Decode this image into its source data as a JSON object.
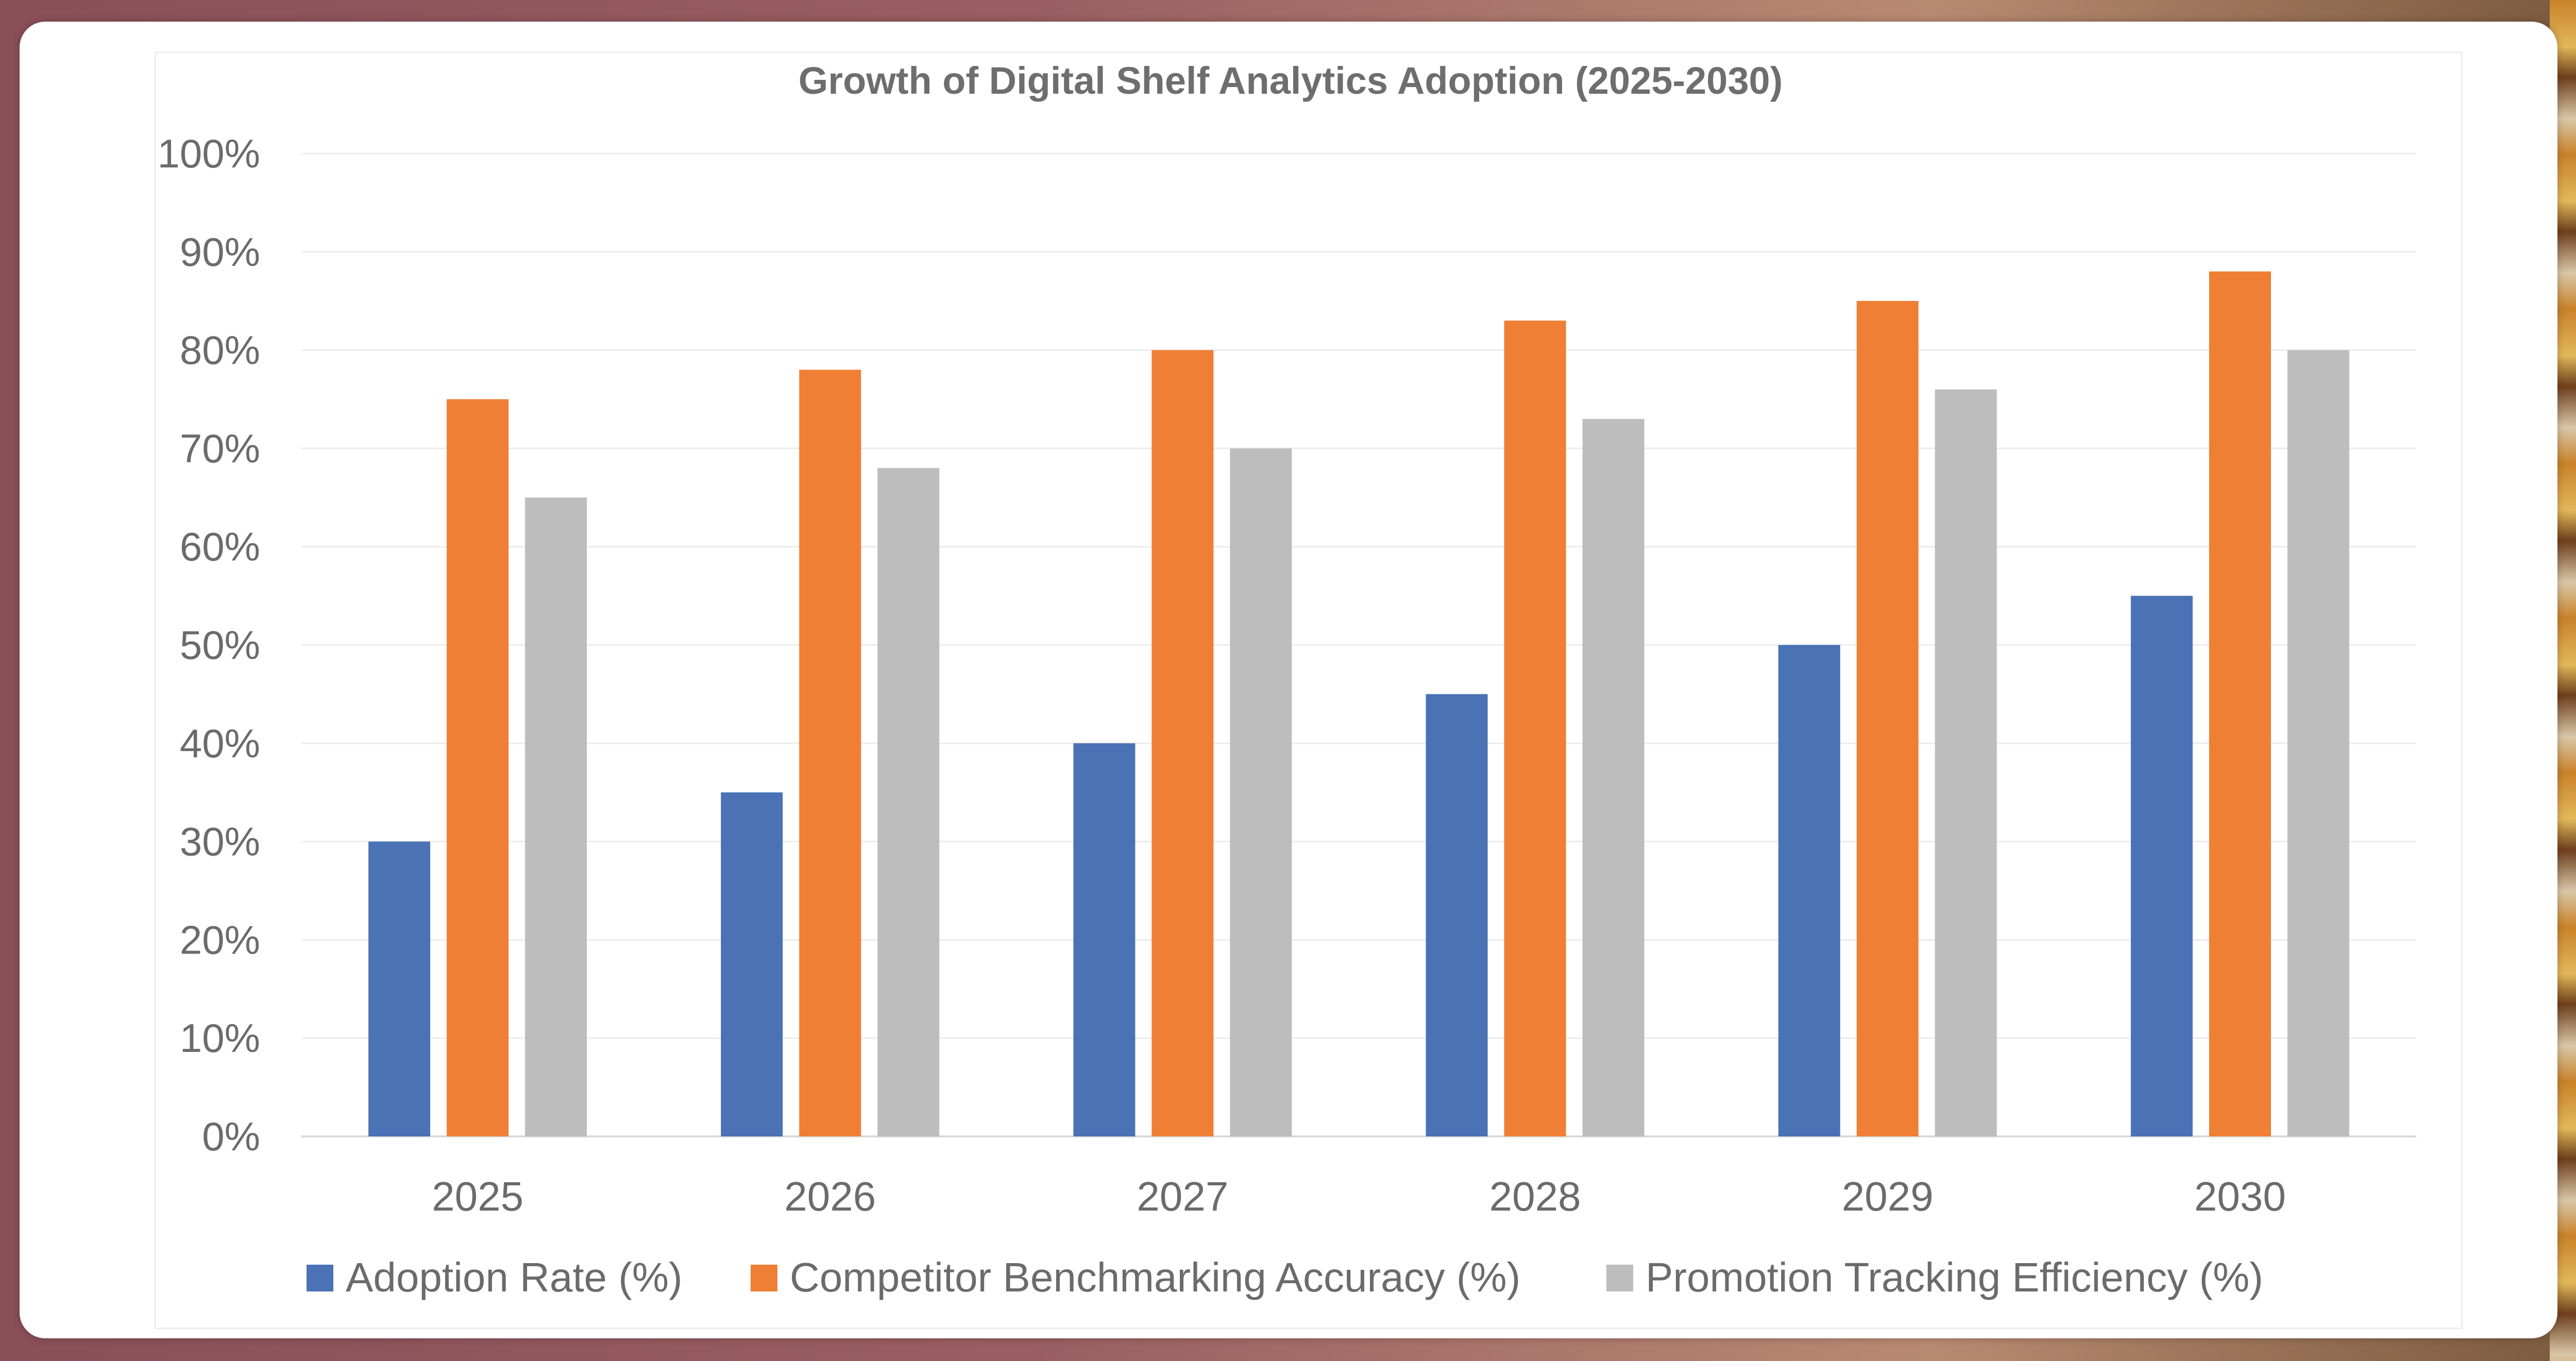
{
  "chart_data": {
    "type": "bar",
    "title": "Growth of Digital Shelf Analytics Adoption (2025-2030)",
    "xlabel": "",
    "ylabel": "",
    "categories": [
      "2025",
      "2026",
      "2027",
      "2028",
      "2029",
      "2030"
    ],
    "series": [
      {
        "name": "Adoption Rate (%)",
        "color": "#4a72b5",
        "values": [
          30,
          35,
          40,
          45,
          50,
          55
        ]
      },
      {
        "name": "Competitor Benchmarking Accuracy (%)",
        "color": "#ef7f34",
        "values": [
          75,
          78,
          80,
          83,
          85,
          88
        ]
      },
      {
        "name": "Promotion Tracking Efficiency (%)",
        "color": "#bdbdbd",
        "values": [
          65,
          68,
          70,
          73,
          76,
          80
        ]
      }
    ],
    "ylim": [
      0,
      100
    ],
    "yticks": [
      "0%",
      "10%",
      "20%",
      "30%",
      "40%",
      "50%",
      "60%",
      "70%",
      "80%",
      "90%",
      "100%"
    ],
    "grid": true,
    "legend_position": "bottom"
  }
}
